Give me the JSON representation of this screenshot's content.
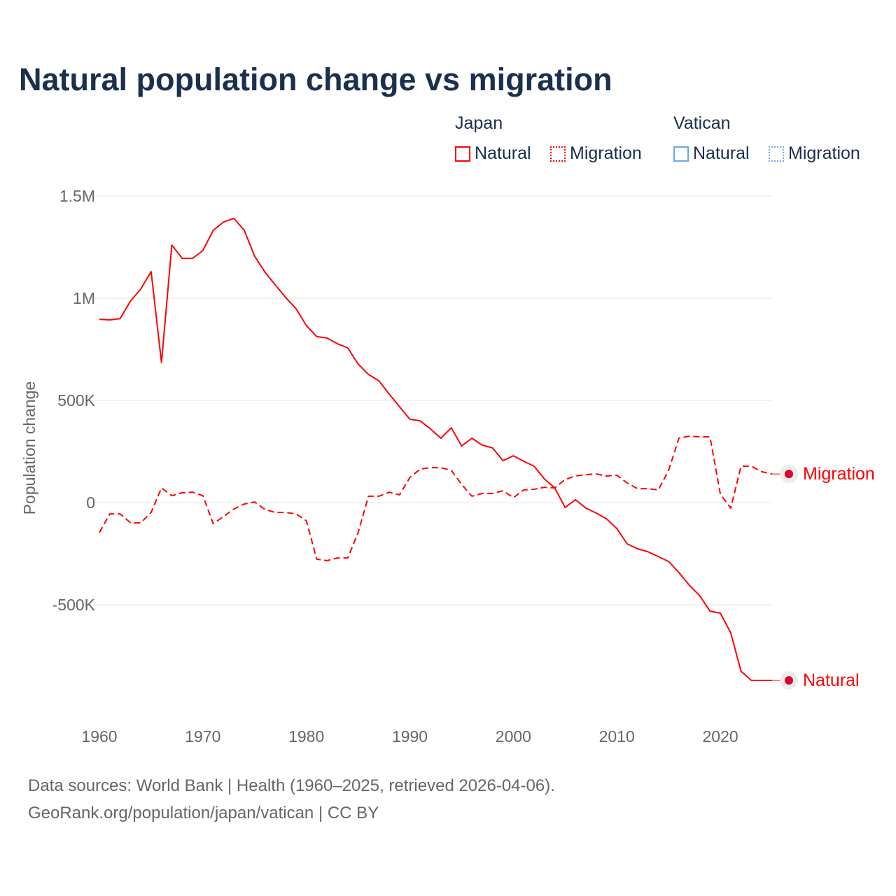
{
  "title": "Natural population change vs migration",
  "legend": {
    "groups": [
      {
        "name": "Japan",
        "color": "#ff0000",
        "items": [
          {
            "label": "Natural",
            "style": "solid"
          },
          {
            "label": "Migration",
            "style": "dotted"
          }
        ]
      },
      {
        "name": "Vatican",
        "color": "#4a90e2",
        "items": [
          {
            "label": "Natural",
            "style": "solid"
          },
          {
            "label": "Migration",
            "style": "dotted"
          }
        ]
      }
    ]
  },
  "chart_data": {
    "type": "line",
    "title": "Natural population change vs migration",
    "xlabel": "",
    "ylabel": "Population change",
    "xlim": [
      1960,
      2025
    ],
    "ylim": [
      -1000000,
      1500000
    ],
    "grid": true,
    "x_ticks": [
      1960,
      1970,
      1980,
      1990,
      2000,
      2010,
      2020
    ],
    "x_tick_labels": [
      "1960",
      "1970",
      "1980",
      "1990",
      "2000",
      "2010",
      "2020"
    ],
    "y_ticks": [
      1500000,
      1000000,
      500000,
      0,
      -500000
    ],
    "y_tick_labels": [
      "1.5M",
      "1M",
      "500K",
      "0",
      "-500K"
    ],
    "x": [
      1960,
      1961,
      1962,
      1963,
      1964,
      1965,
      1966,
      1967,
      1968,
      1969,
      1970,
      1971,
      1972,
      1973,
      1974,
      1975,
      1976,
      1977,
      1978,
      1979,
      1980,
      1981,
      1982,
      1983,
      1984,
      1985,
      1986,
      1987,
      1988,
      1989,
      1990,
      1991,
      1992,
      1993,
      1994,
      1995,
      1996,
      1997,
      1998,
      1999,
      2000,
      2001,
      2002,
      2003,
      2004,
      2005,
      2006,
      2007,
      2008,
      2009,
      2010,
      2011,
      2012,
      2013,
      2014,
      2015,
      2016,
      2017,
      2018,
      2019,
      2020,
      2021,
      2022,
      2023,
      2024,
      2025
    ],
    "series": [
      {
        "name": "Natural",
        "country": "Japan",
        "color": "#ff0000",
        "dash": "solid",
        "end_label": "Natural",
        "values": [
          897000,
          894000,
          900000,
          986000,
          1045000,
          1130000,
          685000,
          1260000,
          1195000,
          1195000,
          1233000,
          1332000,
          1373000,
          1390000,
          1332000,
          1205000,
          1127000,
          1065000,
          1003000,
          949000,
          866000,
          812000,
          805000,
          777000,
          757000,
          678000,
          627000,
          596000,
          531000,
          469000,
          408000,
          400000,
          360000,
          315000,
          366000,
          277000,
          315000,
          281000,
          267000,
          205000,
          229000,
          202000,
          178000,
          116000,
          72000,
          -24000,
          14000,
          -27000,
          -51000,
          -79000,
          -127000,
          -202000,
          -226000,
          -240000,
          -264000,
          -288000,
          -342000,
          -404000,
          -455000,
          -531000,
          -541000,
          -637000,
          -825000,
          -870000,
          -870000,
          -870000
        ]
      },
      {
        "name": "Migration",
        "country": "Japan",
        "color": "#ff0000",
        "dash": "dashed",
        "end_label": "Migration",
        "values": [
          -147000,
          -55000,
          -55000,
          -99000,
          -99000,
          -48000,
          72000,
          34000,
          48000,
          51000,
          34000,
          -103000,
          -68000,
          -31000,
          -7000,
          3000,
          -34000,
          -48000,
          -48000,
          -55000,
          -89000,
          -277000,
          -284000,
          -271000,
          -271000,
          -147000,
          31000,
          31000,
          51000,
          38000,
          123000,
          164000,
          171000,
          171000,
          158000,
          89000,
          31000,
          45000,
          45000,
          58000,
          24000,
          62000,
          65000,
          75000,
          72000,
          113000,
          130000,
          137000,
          140000,
          130000,
          134000,
          96000,
          68000,
          68000,
          62000,
          158000,
          315000,
          325000,
          322000,
          322000,
          41000,
          -27000,
          178000,
          178000,
          151000,
          140000
        ]
      }
    ]
  },
  "source": {
    "line1": "Data sources: World Bank | Health (1960–2025, retrieved 2026-04-06).",
    "line2": "GeoRank.org/population/japan/vatican | CC BY"
  }
}
